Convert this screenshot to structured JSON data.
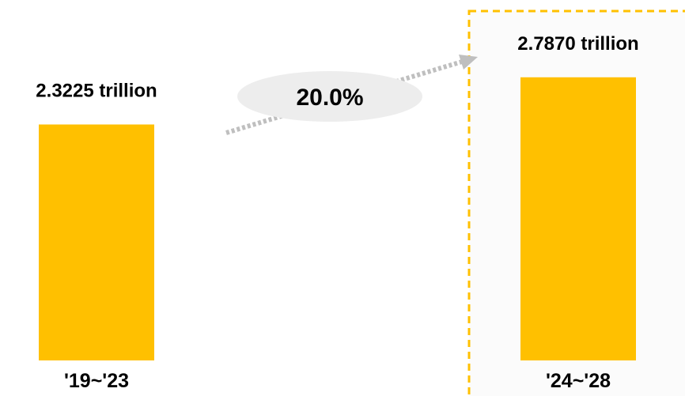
{
  "chart_data": {
    "type": "bar",
    "categories": [
      "'19~'23",
      "'24~'28"
    ],
    "values": [
      2.3225,
      2.787
    ],
    "value_labels": [
      "2.3225 trillion",
      "2.7870 trillion"
    ],
    "ylim": [
      0,
      3.4
    ],
    "grid": false,
    "highlighted_category": "'24~'28",
    "annotation": {
      "text": "20.0%"
    },
    "colors": {
      "bar": "#FFC000",
      "highlight_border": "#FFC000",
      "highlight_background": "#FBFBFB",
      "arrow": "#BFBFBF",
      "annotation_background": "#EDEDED"
    }
  }
}
